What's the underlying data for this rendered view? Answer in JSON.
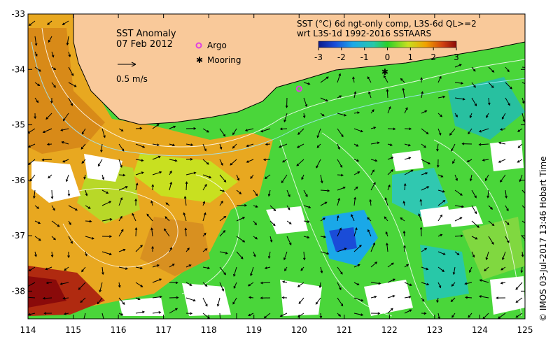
{
  "chart_data": {
    "type": "heatmap",
    "title": "SST Anomaly",
    "date": "07 Feb 2012",
    "product_line1": "SST (°C) 6d ngt-only comp, L3S-6d QL>=2",
    "product_line2": "wrt L3S-1d 1992-2016 SSTAARS",
    "colorbar": {
      "ticks": [
        "-3",
        "-2",
        "-1",
        "0",
        "1",
        "2",
        "3"
      ],
      "range": [
        -3,
        3
      ],
      "colors": [
        "#0a1a8c",
        "#1a4cd8",
        "#1aa8e8",
        "#28c8a8",
        "#2ad028",
        "#c8e020",
        "#f0a000",
        "#d04010",
        "#8a0a0a"
      ]
    },
    "legend": {
      "argo": "Argo",
      "mooring": "Mooring",
      "argo_color": "#e040e0",
      "mooring_color": "#000000"
    },
    "velocity_scale": "0.5 m/s",
    "x_ticks": [
      "114",
      "115",
      "116",
      "117",
      "118",
      "119",
      "120",
      "121",
      "122",
      "123",
      "124",
      "125"
    ],
    "y_ticks": [
      "-33",
      "-34",
      "-35",
      "-36",
      "-37",
      "-38"
    ],
    "xlim": [
      114,
      125
    ],
    "ylim": [
      -38.5,
      -33
    ],
    "land_color": "#f9c99a",
    "credit": "© IMOS 03-Jul-2017 13:46 Hobart Time",
    "argo_position": [
      120.0,
      -34.35
    ],
    "mooring_position": [
      121.9,
      -34.05
    ]
  }
}
